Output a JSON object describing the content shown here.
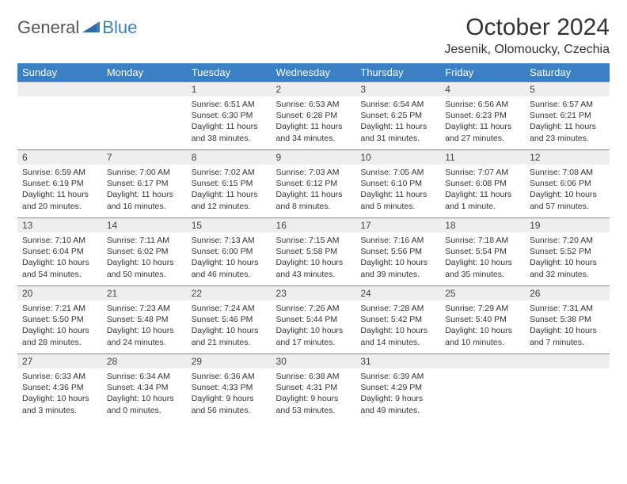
{
  "brand": {
    "part1": "General",
    "part2": "Blue"
  },
  "title": "October 2024",
  "location": "Jesenik, Olomoucky, Czechia",
  "colors": {
    "header_bg": "#3b7fc4",
    "header_fg": "#ffffff",
    "daynum_bg": "#eeeeee",
    "border": "#888888",
    "text": "#333333"
  },
  "day_headers": [
    "Sunday",
    "Monday",
    "Tuesday",
    "Wednesday",
    "Thursday",
    "Friday",
    "Saturday"
  ],
  "weeks": [
    [
      null,
      null,
      {
        "n": "1",
        "sunrise": "6:51 AM",
        "sunset": "6:30 PM",
        "daylight": "11 hours and 38 minutes."
      },
      {
        "n": "2",
        "sunrise": "6:53 AM",
        "sunset": "6:28 PM",
        "daylight": "11 hours and 34 minutes."
      },
      {
        "n": "3",
        "sunrise": "6:54 AM",
        "sunset": "6:25 PM",
        "daylight": "11 hours and 31 minutes."
      },
      {
        "n": "4",
        "sunrise": "6:56 AM",
        "sunset": "6:23 PM",
        "daylight": "11 hours and 27 minutes."
      },
      {
        "n": "5",
        "sunrise": "6:57 AM",
        "sunset": "6:21 PM",
        "daylight": "11 hours and 23 minutes."
      }
    ],
    [
      {
        "n": "6",
        "sunrise": "6:59 AM",
        "sunset": "6:19 PM",
        "daylight": "11 hours and 20 minutes."
      },
      {
        "n": "7",
        "sunrise": "7:00 AM",
        "sunset": "6:17 PM",
        "daylight": "11 hours and 16 minutes."
      },
      {
        "n": "8",
        "sunrise": "7:02 AM",
        "sunset": "6:15 PM",
        "daylight": "11 hours and 12 minutes."
      },
      {
        "n": "9",
        "sunrise": "7:03 AM",
        "sunset": "6:12 PM",
        "daylight": "11 hours and 8 minutes."
      },
      {
        "n": "10",
        "sunrise": "7:05 AM",
        "sunset": "6:10 PM",
        "daylight": "11 hours and 5 minutes."
      },
      {
        "n": "11",
        "sunrise": "7:07 AM",
        "sunset": "6:08 PM",
        "daylight": "11 hours and 1 minute."
      },
      {
        "n": "12",
        "sunrise": "7:08 AM",
        "sunset": "6:06 PM",
        "daylight": "10 hours and 57 minutes."
      }
    ],
    [
      {
        "n": "13",
        "sunrise": "7:10 AM",
        "sunset": "6:04 PM",
        "daylight": "10 hours and 54 minutes."
      },
      {
        "n": "14",
        "sunrise": "7:11 AM",
        "sunset": "6:02 PM",
        "daylight": "10 hours and 50 minutes."
      },
      {
        "n": "15",
        "sunrise": "7:13 AM",
        "sunset": "6:00 PM",
        "daylight": "10 hours and 46 minutes."
      },
      {
        "n": "16",
        "sunrise": "7:15 AM",
        "sunset": "5:58 PM",
        "daylight": "10 hours and 43 minutes."
      },
      {
        "n": "17",
        "sunrise": "7:16 AM",
        "sunset": "5:56 PM",
        "daylight": "10 hours and 39 minutes."
      },
      {
        "n": "18",
        "sunrise": "7:18 AM",
        "sunset": "5:54 PM",
        "daylight": "10 hours and 35 minutes."
      },
      {
        "n": "19",
        "sunrise": "7:20 AM",
        "sunset": "5:52 PM",
        "daylight": "10 hours and 32 minutes."
      }
    ],
    [
      {
        "n": "20",
        "sunrise": "7:21 AM",
        "sunset": "5:50 PM",
        "daylight": "10 hours and 28 minutes."
      },
      {
        "n": "21",
        "sunrise": "7:23 AM",
        "sunset": "5:48 PM",
        "daylight": "10 hours and 24 minutes."
      },
      {
        "n": "22",
        "sunrise": "7:24 AM",
        "sunset": "5:46 PM",
        "daylight": "10 hours and 21 minutes."
      },
      {
        "n": "23",
        "sunrise": "7:26 AM",
        "sunset": "5:44 PM",
        "daylight": "10 hours and 17 minutes."
      },
      {
        "n": "24",
        "sunrise": "7:28 AM",
        "sunset": "5:42 PM",
        "daylight": "10 hours and 14 minutes."
      },
      {
        "n": "25",
        "sunrise": "7:29 AM",
        "sunset": "5:40 PM",
        "daylight": "10 hours and 10 minutes."
      },
      {
        "n": "26",
        "sunrise": "7:31 AM",
        "sunset": "5:38 PM",
        "daylight": "10 hours and 7 minutes."
      }
    ],
    [
      {
        "n": "27",
        "sunrise": "6:33 AM",
        "sunset": "4:36 PM",
        "daylight": "10 hours and 3 minutes."
      },
      {
        "n": "28",
        "sunrise": "6:34 AM",
        "sunset": "4:34 PM",
        "daylight": "10 hours and 0 minutes."
      },
      {
        "n": "29",
        "sunrise": "6:36 AM",
        "sunset": "4:33 PM",
        "daylight": "9 hours and 56 minutes."
      },
      {
        "n": "30",
        "sunrise": "6:38 AM",
        "sunset": "4:31 PM",
        "daylight": "9 hours and 53 minutes."
      },
      {
        "n": "31",
        "sunrise": "6:39 AM",
        "sunset": "4:29 PM",
        "daylight": "9 hours and 49 minutes."
      },
      null,
      null
    ]
  ],
  "labels": {
    "sunrise": "Sunrise:",
    "sunset": "Sunset:",
    "daylight": "Daylight:"
  }
}
